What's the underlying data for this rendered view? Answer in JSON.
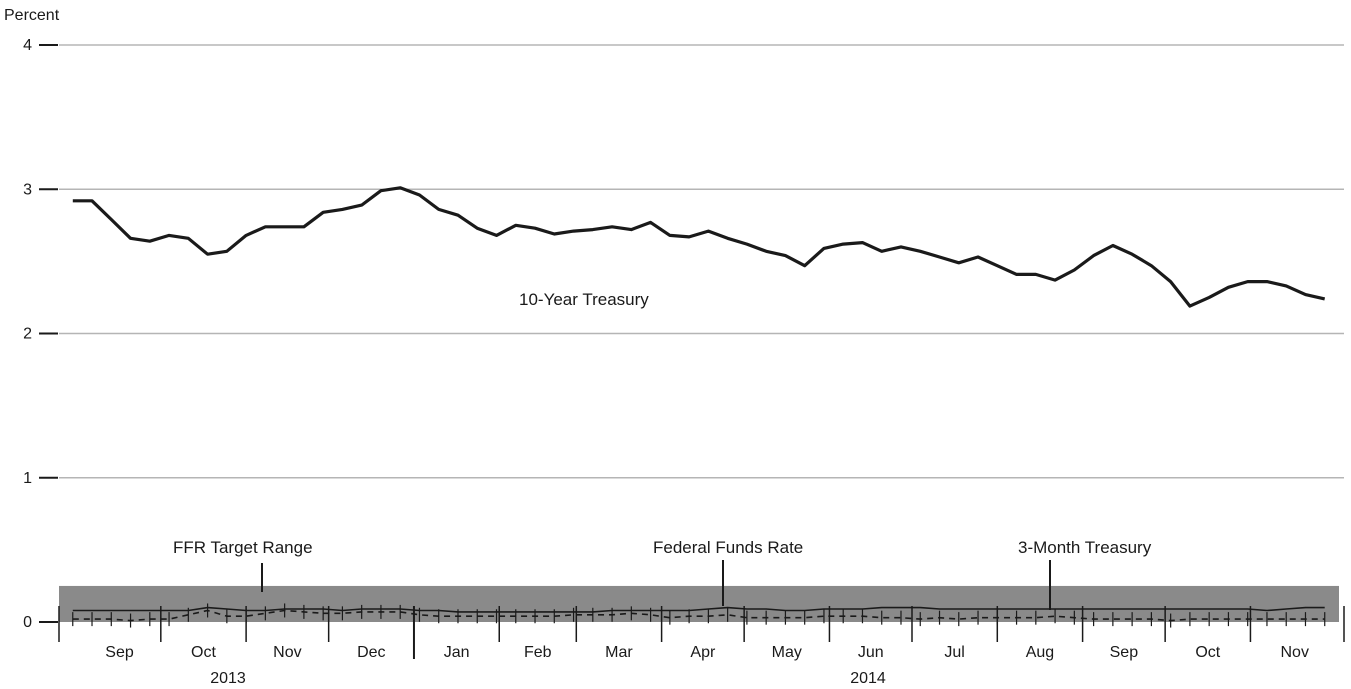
{
  "chart_data": {
    "type": "line",
    "ylabel": "Percent",
    "ylim": [
      0,
      4
    ],
    "y_ticks": [
      "0",
      "1",
      "2",
      "3",
      "4"
    ],
    "grid": true,
    "months": [
      "Sep",
      "Oct",
      "Nov",
      "Dec",
      "Jan",
      "Feb",
      "Mar",
      "Apr",
      "May",
      "Jun",
      "Jul",
      "Aug",
      "Sep",
      "Oct",
      "Nov"
    ],
    "years": [
      "2013",
      "2014"
    ],
    "target_range": {
      "label": "FFR Target Range",
      "low": 0,
      "high": 0.25,
      "color": "#8a8a8a"
    },
    "annotations": {
      "ten_year": "10-Year Treasury",
      "ffr_target": "FFR Target Range",
      "fed_funds": "Federal Funds Rate",
      "three_month": "3-Month Treasury"
    },
    "x_dates": [
      "2013-08-30",
      "2013-09-06",
      "2013-09-13",
      "2013-09-20",
      "2013-09-27",
      "2013-10-04",
      "2013-10-11",
      "2013-10-18",
      "2013-10-25",
      "2013-11-01",
      "2013-11-08",
      "2013-11-15",
      "2013-11-22",
      "2013-11-29",
      "2013-12-06",
      "2013-12-13",
      "2013-12-20",
      "2013-12-27",
      "2014-01-03",
      "2014-01-10",
      "2014-01-17",
      "2014-01-24",
      "2014-01-31",
      "2014-02-07",
      "2014-02-14",
      "2014-02-21",
      "2014-02-28",
      "2014-03-07",
      "2014-03-14",
      "2014-03-21",
      "2014-03-28",
      "2014-04-04",
      "2014-04-11",
      "2014-04-18",
      "2014-04-25",
      "2014-05-02",
      "2014-05-09",
      "2014-05-16",
      "2014-05-23",
      "2014-05-30",
      "2014-06-06",
      "2014-06-13",
      "2014-06-20",
      "2014-06-27",
      "2014-07-04",
      "2014-07-11",
      "2014-07-18",
      "2014-07-25",
      "2014-08-01",
      "2014-08-08",
      "2014-08-15",
      "2014-08-22",
      "2014-08-29",
      "2014-09-05",
      "2014-09-12",
      "2014-09-19",
      "2014-09-26",
      "2014-10-03",
      "2014-10-10",
      "2014-10-17",
      "2014-10-24",
      "2014-10-31",
      "2014-11-07",
      "2014-11-14",
      "2014-11-21",
      "2014-11-28"
    ],
    "series": [
      {
        "name": "10-Year Treasury",
        "style": "solid-thick",
        "values": [
          2.92,
          2.92,
          2.79,
          2.66,
          2.64,
          2.68,
          2.66,
          2.55,
          2.57,
          2.68,
          2.74,
          2.74,
          2.74,
          2.84,
          2.86,
          2.89,
          2.99,
          3.01,
          2.96,
          2.86,
          2.82,
          2.73,
          2.68,
          2.75,
          2.73,
          2.69,
          2.71,
          2.72,
          2.74,
          2.72,
          2.77,
          2.68,
          2.67,
          2.71,
          2.66,
          2.62,
          2.57,
          2.54,
          2.47,
          2.59,
          2.62,
          2.63,
          2.57,
          2.6,
          2.57,
          2.53,
          2.49,
          2.53,
          2.47,
          2.41,
          2.41,
          2.37,
          2.44,
          2.54,
          2.61,
          2.55,
          2.47,
          2.36,
          2.19,
          2.25,
          2.32,
          2.36,
          2.36,
          2.33,
          2.27,
          2.24
        ]
      },
      {
        "name": "Federal Funds Rate",
        "style": "solid-thin",
        "values": [
          0.08,
          0.08,
          0.08,
          0.08,
          0.08,
          0.08,
          0.08,
          0.1,
          0.09,
          0.08,
          0.08,
          0.09,
          0.09,
          0.09,
          0.08,
          0.09,
          0.09,
          0.09,
          0.08,
          0.08,
          0.07,
          0.07,
          0.07,
          0.07,
          0.07,
          0.07,
          0.07,
          0.07,
          0.08,
          0.08,
          0.08,
          0.08,
          0.08,
          0.09,
          0.1,
          0.09,
          0.09,
          0.08,
          0.08,
          0.09,
          0.09,
          0.09,
          0.1,
          0.1,
          0.1,
          0.09,
          0.09,
          0.09,
          0.09,
          0.09,
          0.09,
          0.09,
          0.09,
          0.09,
          0.09,
          0.09,
          0.09,
          0.09,
          0.09,
          0.09,
          0.09,
          0.09,
          0.08,
          0.09,
          0.1,
          0.1
        ]
      },
      {
        "name": "3-Month Treasury",
        "style": "dashed",
        "values": [
          0.02,
          0.02,
          0.02,
          0.01,
          0.02,
          0.02,
          0.05,
          0.08,
          0.04,
          0.04,
          0.06,
          0.08,
          0.07,
          0.06,
          0.06,
          0.07,
          0.07,
          0.07,
          0.05,
          0.04,
          0.04,
          0.04,
          0.04,
          0.04,
          0.04,
          0.04,
          0.05,
          0.05,
          0.05,
          0.06,
          0.05,
          0.03,
          0.04,
          0.04,
          0.05,
          0.03,
          0.03,
          0.03,
          0.03,
          0.04,
          0.04,
          0.04,
          0.03,
          0.03,
          0.02,
          0.03,
          0.02,
          0.03,
          0.03,
          0.03,
          0.03,
          0.04,
          0.03,
          0.02,
          0.02,
          0.02,
          0.02,
          0.01,
          0.02,
          0.02,
          0.02,
          0.02,
          0.02,
          0.02,
          0.02,
          0.02
        ]
      }
    ]
  }
}
